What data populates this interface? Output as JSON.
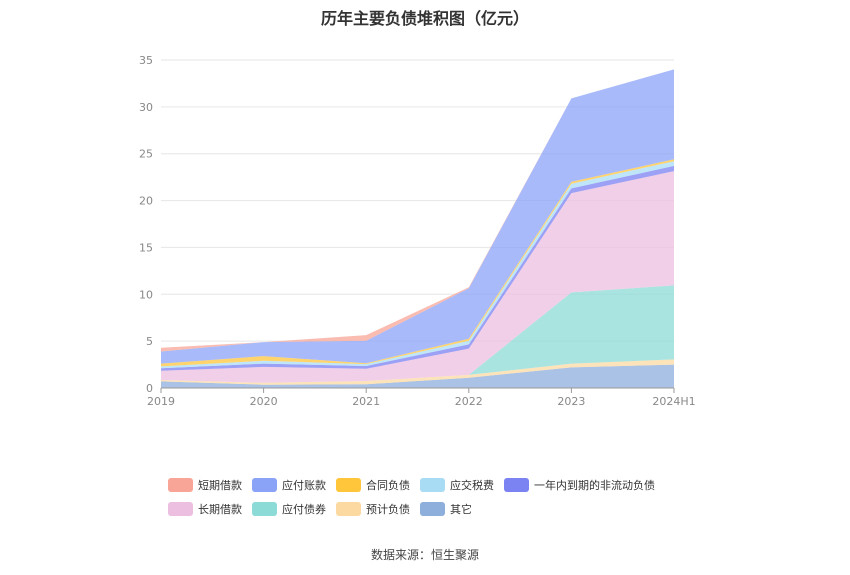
{
  "chart_data": {
    "type": "area",
    "title": "历年主要负债堆积图（亿元）",
    "source": "数据来源：恒生聚源",
    "x": [
      "2019",
      "2020",
      "2021",
      "2022",
      "2023",
      "2024H1"
    ],
    "ylim": [
      0,
      35
    ],
    "yticks": [
      0,
      5,
      10,
      15,
      20,
      25,
      30,
      35
    ],
    "stacked": true,
    "grid": true,
    "legend_position": "bottom",
    "series": [
      {
        "name": "其它",
        "color": "#8eaedc",
        "values": [
          0.7,
          0.35,
          0.4,
          1.1,
          2.2,
          2.5
        ]
      },
      {
        "name": "预计负债",
        "color": "#fcd9a1",
        "values": [
          0.15,
          0.2,
          0.35,
          0.3,
          0.4,
          0.55
        ]
      },
      {
        "name": "应付债券",
        "color": "#8ddbd7",
        "values": [
          0,
          0,
          0,
          0,
          7.6,
          7.9
        ]
      },
      {
        "name": "长期借款",
        "color": "#ecbfe0",
        "values": [
          1.0,
          1.7,
          1.3,
          2.8,
          10.6,
          12.2
        ]
      },
      {
        "name": "一年内到期的非流动负债",
        "color": "#7b82f2",
        "values": [
          0.25,
          0.35,
          0.3,
          0.45,
          0.5,
          0.55
        ]
      },
      {
        "name": "应交税费",
        "color": "#a8dcf5",
        "values": [
          0.2,
          0.3,
          0.2,
          0.4,
          0.5,
          0.5
        ]
      },
      {
        "name": "合同负债",
        "color": "#ffc63c",
        "values": [
          0.3,
          0.5,
          0.1,
          0.2,
          0.2,
          0.2
        ]
      },
      {
        "name": "应付账款",
        "color": "#8ba3f7",
        "values": [
          1.3,
          1.5,
          2.4,
          5.4,
          8.9,
          9.6
        ]
      },
      {
        "name": "短期借款",
        "color": "#f8a597",
        "values": [
          0.4,
          0,
          0.6,
          0.1,
          0,
          0
        ]
      }
    ]
  },
  "legend": {
    "rows": [
      [
        {
          "label": "短期借款",
          "color": "#f8a597"
        },
        {
          "label": "应付账款",
          "color": "#8ba3f7"
        },
        {
          "label": "合同负债",
          "color": "#ffc63c"
        },
        {
          "label": "应交税费",
          "color": "#a8dcf5"
        },
        {
          "label": "一年内到期的非流动负债",
          "color": "#7b82f2"
        }
      ],
      [
        {
          "label": "长期借款",
          "color": "#ecbfe0"
        },
        {
          "label": "应付债券",
          "color": "#8ddbd7"
        },
        {
          "label": "预计负债",
          "color": "#fcd9a1"
        },
        {
          "label": "其它",
          "color": "#8eaedc"
        }
      ]
    ]
  }
}
